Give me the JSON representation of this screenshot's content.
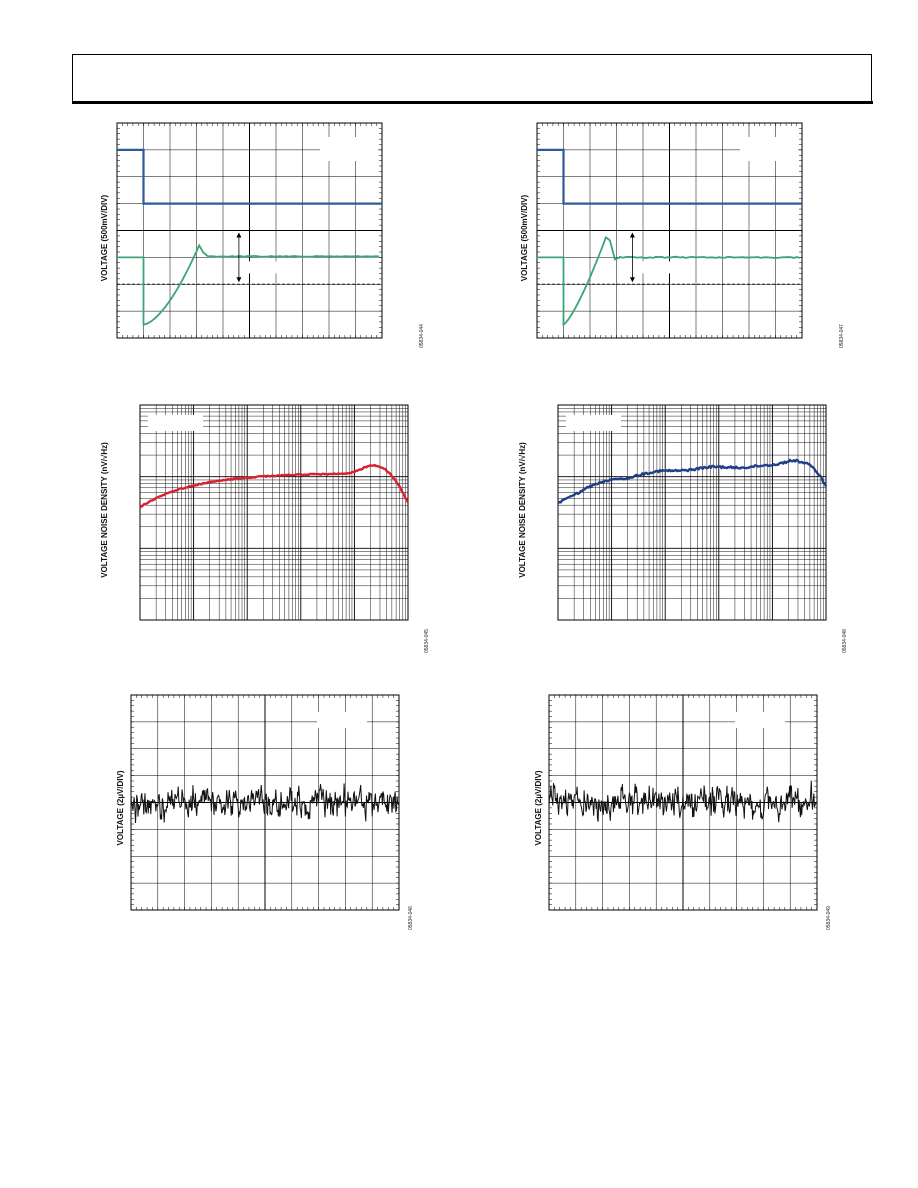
{
  "charts": [
    {
      "id": "transient-left",
      "type": "line",
      "ylabel": "VOLTAGE (500mV/DIV)",
      "code": "05834-044",
      "series": [
        {
          "color": "#2f5a9a"
        },
        {
          "color": "#3aa577"
        }
      ]
    },
    {
      "id": "transient-right",
      "type": "line",
      "ylabel": "VOLTAGE (500mV/DIV)",
      "code": "05834-047",
      "series": [
        {
          "color": "#2f5a9a"
        },
        {
          "color": "#3aa577"
        }
      ]
    },
    {
      "id": "noise-density-left",
      "type": "line",
      "ylabel": "VOLTAGE NOISE DENSITY (nV/√Hz)",
      "code": "05834-045",
      "scale": "log-log",
      "series": [
        {
          "color": "#d9202e"
        }
      ]
    },
    {
      "id": "noise-density-right",
      "type": "line",
      "ylabel": "VOLTAGE NOISE DENSITY (nV/√Hz)",
      "code": "05834-048",
      "scale": "log-log",
      "series": [
        {
          "color": "#1f3f86"
        }
      ]
    },
    {
      "id": "noise-time-left",
      "type": "line",
      "ylabel": "VOLTAGE (2µV/DIV)",
      "code": "05834-046",
      "series": [
        {
          "color": "#111111"
        }
      ]
    },
    {
      "id": "noise-time-right",
      "type": "line",
      "ylabel": "VOLTAGE (2µV/DIV)",
      "code": "05834-049",
      "series": [
        {
          "color": "#111111"
        }
      ]
    }
  ]
}
